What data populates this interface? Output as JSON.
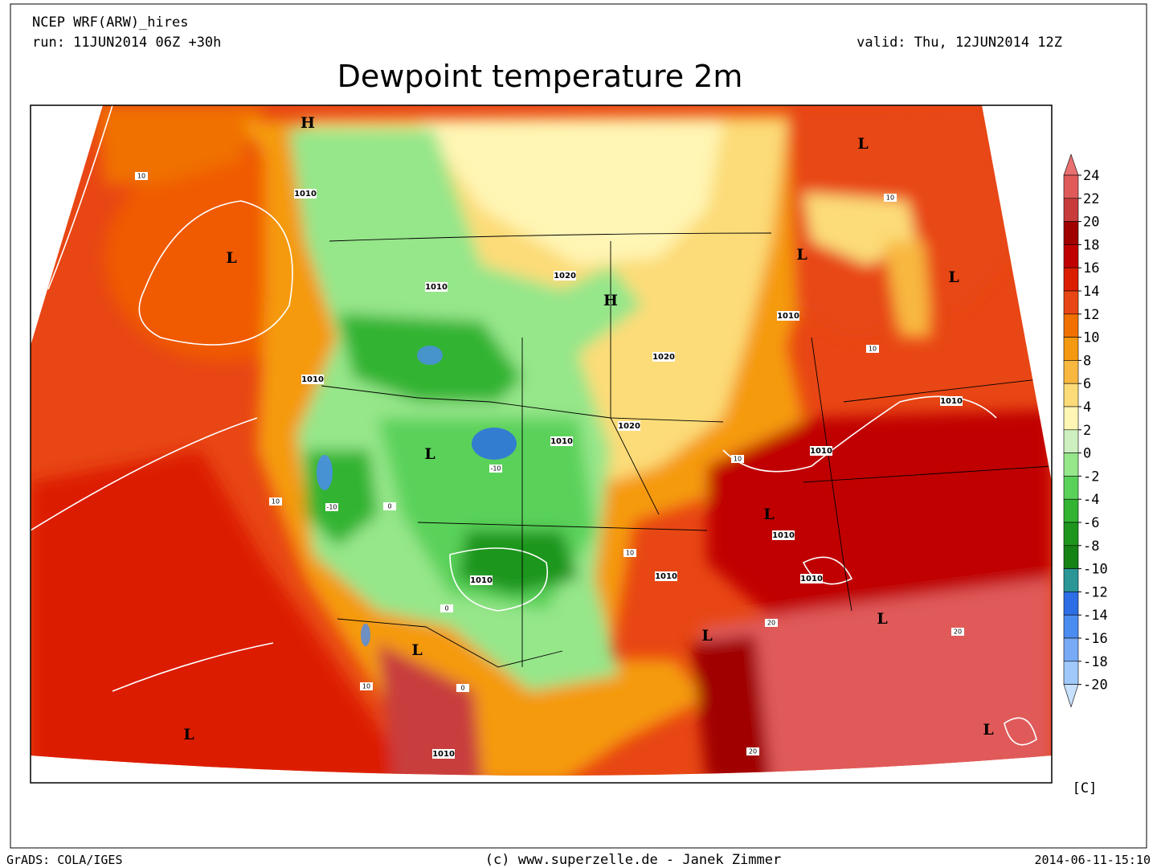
{
  "header": {
    "model": "NCEP WRF(ARW)_hires",
    "run": "run: 11JUN2014 06Z +30h",
    "valid": "valid: Thu, 12JUN2014 12Z",
    "title": "Dewpoint temperature 2m"
  },
  "legend": {
    "unit": "[C]",
    "ticks": [
      24,
      22,
      20,
      18,
      16,
      14,
      12,
      10,
      8,
      6,
      4,
      2,
      0,
      -2,
      -4,
      -6,
      -8,
      -10,
      -12,
      -14,
      -16,
      -18,
      -20
    ],
    "colors": [
      "#e87070",
      "#e05a5a",
      "#c83c3c",
      "#a00000",
      "#c00000",
      "#dc1e00",
      "#e84614",
      "#f07000",
      "#f59a10",
      "#f8b840",
      "#fcdc78",
      "#fff5b4",
      "#cdf0c0",
      "#96e68a",
      "#5ad25a",
      "#32b432",
      "#1e961e",
      "#148214",
      "#2a9696",
      "#2d6ee6",
      "#4b8cf0",
      "#78aaf5",
      "#a0c8fa",
      "#c8e1ff"
    ]
  },
  "map": {
    "highs_lows": [
      "H",
      "L",
      "L",
      "L",
      "L",
      "H",
      "L",
      "L",
      "L",
      "L",
      "L",
      "L",
      "L"
    ],
    "isobars": [
      "1010",
      "1020",
      "1010",
      "1010",
      "1020",
      "1010",
      "1010",
      "1020",
      "1010",
      "1010",
      "1010",
      "1010",
      "1010",
      "1010",
      "1010"
    ],
    "contours": [
      "-10",
      "-10",
      "10",
      "10",
      "10",
      "10",
      "10",
      "10",
      "20",
      "20",
      "20",
      "0",
      "0",
      "0",
      "10"
    ]
  },
  "footer": {
    "left": "GrADS: COLA/IGES",
    "center": "(c) www.superzelle.de - Janek Zimmer",
    "right": "2014-06-11-15:10"
  }
}
